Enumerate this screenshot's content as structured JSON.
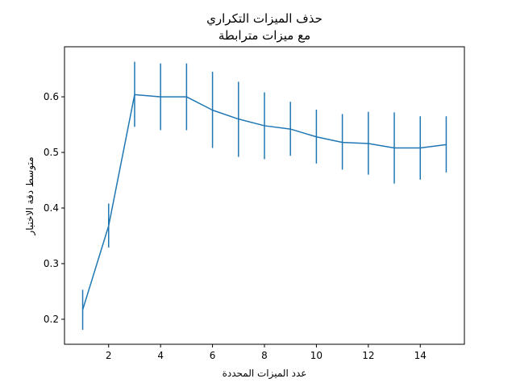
{
  "chart_data": {
    "type": "line",
    "title": [
      "حذف الميزات التكراري",
      "مع ميزات مترابطة"
    ],
    "xlabel": "عدد الميزات المحددة",
    "ylabel": "متوسط دقة الاختبار",
    "xlim": [
      0.3,
      15.7
    ],
    "ylim": [
      0.155,
      0.69
    ],
    "xticks": [
      2,
      4,
      6,
      8,
      10,
      12,
      14
    ],
    "xtick_labels": [
      "2",
      "4",
      "6",
      "8",
      "10",
      "12",
      "14"
    ],
    "yticks": [
      0.2,
      0.3,
      0.4,
      0.5,
      0.6
    ],
    "ytick_labels": [
      "0.2",
      "0.3",
      "0.4",
      "0.5",
      "0.6"
    ],
    "grid": false,
    "color": "#1f77b4",
    "series": [
      {
        "x": [
          1,
          2,
          3,
          4,
          5,
          6,
          7,
          8,
          9,
          10,
          11,
          12,
          13,
          14,
          15
        ],
        "values": [
          0.217,
          0.368,
          0.604,
          0.6,
          0.6,
          0.576,
          0.56,
          0.548,
          0.542,
          0.528,
          0.518,
          0.516,
          0.508,
          0.508,
          0.514
        ],
        "err_lower": [
          0.181,
          0.329,
          0.546,
          0.54,
          0.54,
          0.508,
          0.492,
          0.488,
          0.494,
          0.48,
          0.469,
          0.46,
          0.444,
          0.451,
          0.464
        ],
        "err_upper": [
          0.253,
          0.408,
          0.663,
          0.66,
          0.66,
          0.645,
          0.627,
          0.608,
          0.591,
          0.577,
          0.569,
          0.573,
          0.572,
          0.565,
          0.565
        ]
      }
    ]
  }
}
